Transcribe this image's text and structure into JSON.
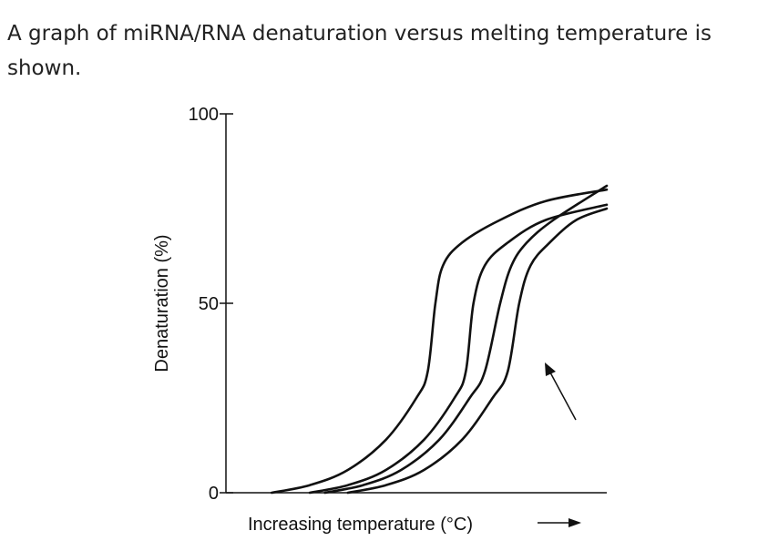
{
  "intro_text": "A graph of miRNA/RNA denaturation versus melting temperature is shown.",
  "chart_data": {
    "type": "line",
    "title": "",
    "xlabel": "Increasing temperature (°C)",
    "ylabel": "Denaturation (%)",
    "yticks": [
      "0",
      "50",
      "100"
    ],
    "ylim": [
      0,
      100
    ],
    "xlim": [
      0,
      100
    ],
    "x_tick_labels": "none",
    "grid": false,
    "legend": "none",
    "annotation": "arrow pointing at the rightmost curve",
    "series": [
      {
        "points": [
          [
            12,
            0
          ],
          [
            22,
            2
          ],
          [
            32,
            6
          ],
          [
            42,
            14
          ],
          [
            50,
            25
          ],
          [
            53,
            32
          ],
          [
            55,
            50
          ],
          [
            57,
            60
          ],
          [
            62,
            66
          ],
          [
            72,
            72
          ],
          [
            84,
            77
          ],
          [
            100,
            80
          ]
        ]
      },
      {
        "points": [
          [
            22,
            0
          ],
          [
            32,
            2
          ],
          [
            42,
            6
          ],
          [
            52,
            14
          ],
          [
            60,
            25
          ],
          [
            63,
            32
          ],
          [
            65,
            50
          ],
          [
            68,
            60
          ],
          [
            74,
            66
          ],
          [
            84,
            72
          ],
          [
            100,
            76
          ]
        ]
      },
      {
        "points": [
          [
            26,
            0
          ],
          [
            36,
            2
          ],
          [
            46,
            6
          ],
          [
            56,
            14
          ],
          [
            64,
            25
          ],
          [
            68,
            32
          ],
          [
            72,
            50
          ],
          [
            75,
            60
          ],
          [
            79,
            66
          ],
          [
            86,
            72
          ],
          [
            100,
            81
          ]
        ]
      },
      {
        "points": [
          [
            32,
            0
          ],
          [
            42,
            2
          ],
          [
            52,
            6
          ],
          [
            62,
            14
          ],
          [
            70,
            25
          ],
          [
            74,
            32
          ],
          [
            77,
            50
          ],
          [
            80,
            60
          ],
          [
            85,
            66
          ],
          [
            92,
            72
          ],
          [
            100,
            75
          ]
        ]
      }
    ]
  }
}
